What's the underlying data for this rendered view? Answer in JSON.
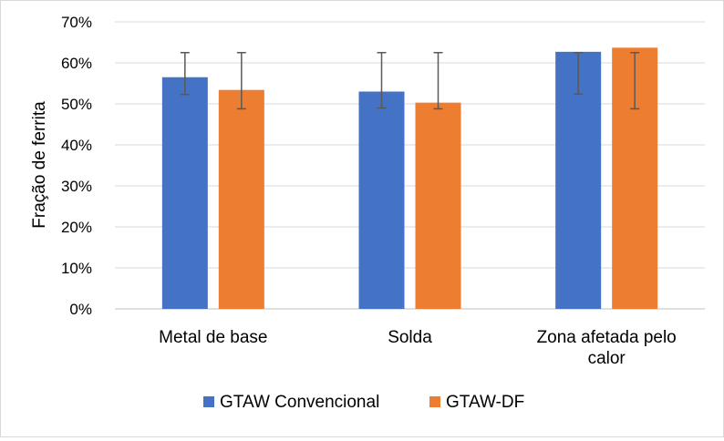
{
  "chart_data": {
    "type": "bar",
    "title": "",
    "xlabel": "",
    "ylabel": "Fração de ferrita",
    "ylim": [
      0,
      0.7
    ],
    "yticks": [
      "0%",
      "10%",
      "20%",
      "30%",
      "40%",
      "50%",
      "60%",
      "70%"
    ],
    "grid": true,
    "legend_position": "bottom",
    "categories": [
      [
        "Metal de base"
      ],
      [
        "Solda"
      ],
      [
        "Zona afetada pelo",
        "calor"
      ]
    ],
    "series": [
      {
        "name": "GTAW Convencional",
        "color": "#4472c4",
        "values": [
          0.565,
          0.53,
          0.627
        ],
        "err_low": [
          0.523,
          0.49,
          0.524
        ],
        "err_high": [
          0.625,
          0.625,
          0.625
        ]
      },
      {
        "name": "GTAW-DF",
        "color": "#ed7d31",
        "values": [
          0.534,
          0.503,
          0.637
        ],
        "err_low": [
          0.488,
          0.488,
          0.488
        ],
        "err_high": [
          0.625,
          0.625,
          0.625
        ]
      }
    ]
  }
}
